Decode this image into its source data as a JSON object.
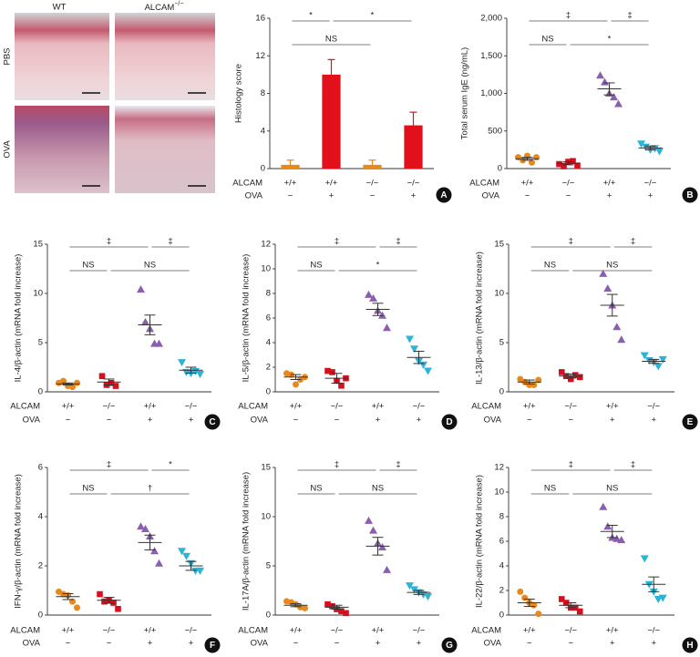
{
  "histology": {
    "columns": [
      {
        "text": "WT"
      },
      {
        "text": "ALCAM",
        "sup": "−/−"
      }
    ],
    "rows": [
      "PBS",
      "OVA"
    ]
  },
  "chart_data": [
    {
      "type": "bar",
      "panel": "A",
      "ylabel": "Histology score",
      "ylim": [
        0,
        16
      ],
      "yticks": [
        0,
        4,
        8,
        12,
        16
      ],
      "rows": [
        {
          "label": "ALCAM",
          "cells": [
            "+/+",
            "+/+",
            "−/−",
            "−/−"
          ]
        },
        {
          "label": "OVA",
          "cells": [
            "−",
            "+",
            "−",
            "+"
          ]
        }
      ],
      "values": [
        0.4,
        10,
        0.4,
        4.6
      ],
      "errors": [
        0.5,
        1.6,
        0.5,
        1.4
      ],
      "colors": [
        "#e8891a",
        "#e2101a",
        "#e8891a",
        "#e2101a"
      ],
      "brackets": [
        [
          {
            "pair": [
              0,
              1
            ],
            "label": "*"
          },
          {
            "pair": [
              1,
              3
            ],
            "label": "*"
          }
        ],
        [
          {
            "pair": [
              0,
              2
            ],
            "label": "NS"
          }
        ]
      ]
    },
    {
      "type": "dot",
      "panel": "B",
      "ylabel": "Total serum IgE (ng/mL)",
      "ylim": [
        0,
        2000
      ],
      "yticks": [
        0,
        500,
        {
          "value": 1000,
          "label": "1,000"
        },
        {
          "value": 1500,
          "label": "1,500"
        },
        {
          "value": 2000,
          "label": "2,000"
        }
      ],
      "rows": [
        {
          "label": "ALCAM",
          "cells": [
            "+/+",
            "−/−",
            "+/+",
            "−/−"
          ]
        },
        {
          "label": "OVA",
          "cells": [
            "−",
            "−",
            "+",
            "+"
          ]
        }
      ],
      "groups": [
        {
          "color": "#e8891a",
          "marker": "circle",
          "values": [
            150,
            110,
            170,
            80,
            150
          ],
          "mean": 130,
          "sem": 20
        },
        {
          "color": "#d4101f",
          "marker": "square",
          "values": [
            60,
            30,
            90,
            100,
            40
          ],
          "mean": 70,
          "sem": 20
        },
        {
          "color": "#8a5fb0",
          "marker": "triangle",
          "values": [
            1240,
            1150,
            1000,
            950,
            860
          ],
          "mean": 1060,
          "sem": 80
        },
        {
          "color": "#2bb3d8",
          "marker": "triangle-down",
          "values": [
            330,
            290,
            250,
            270,
            230
          ],
          "mean": 275,
          "sem": 25
        }
      ],
      "brackets": [
        [
          {
            "pair": [
              0,
              2
            ],
            "label": "‡"
          },
          {
            "pair": [
              2,
              3
            ],
            "label": "‡"
          }
        ],
        [
          {
            "pair": [
              0,
              1
            ],
            "label": "NS"
          },
          {
            "pair": [
              1,
              3
            ],
            "label": "*"
          }
        ]
      ]
    },
    {
      "type": "dot",
      "panel": "C",
      "ylabel": "IL-4/β-actin (mRNA fold increase)",
      "ylim": [
        0,
        15
      ],
      "yticks": [
        0,
        5,
        10,
        15
      ],
      "rows": [
        {
          "label": "ALCAM",
          "cells": [
            "+/+",
            "−/−",
            "+/+",
            "−/−"
          ]
        },
        {
          "label": "OVA",
          "cells": [
            "−",
            "−",
            "+",
            "+"
          ]
        }
      ],
      "groups": [
        {
          "color": "#e8891a",
          "marker": "circle",
          "values": [
            0.9,
            1.1,
            0.6,
            0.5,
            0.9
          ],
          "mean": 0.8,
          "sem": 0.1
        },
        {
          "color": "#d4101f",
          "marker": "square",
          "values": [
            1.6,
            0.7,
            0.9,
            0.6
          ],
          "mean": 1.0,
          "sem": 0.3
        },
        {
          "color": "#8a5fb0",
          "marker": "triangle",
          "values": [
            10.4,
            7.1,
            6.4,
            4.9,
            4.9
          ],
          "mean": 6.8,
          "sem": 1.0
        },
        {
          "color": "#2bb3d8",
          "marker": "triangle-down",
          "values": [
            3.0,
            2.0,
            1.9,
            2.1,
            1.8
          ],
          "mean": 2.2,
          "sem": 0.3
        }
      ],
      "brackets": [
        [
          {
            "pair": [
              0,
              2
            ],
            "label": "‡"
          },
          {
            "pair": [
              2,
              3
            ],
            "label": "‡"
          }
        ],
        [
          {
            "pair": [
              0,
              1
            ],
            "label": "NS"
          },
          {
            "pair": [
              1,
              3
            ],
            "label": "NS"
          }
        ]
      ]
    },
    {
      "type": "dot",
      "panel": "D",
      "ylabel": "IL-5/β-actin (mRNA fold increase)",
      "ylim": [
        0,
        12
      ],
      "yticks": [
        0,
        2,
        4,
        6,
        8,
        10,
        12
      ],
      "rows": [
        {
          "label": "ALCAM",
          "cells": [
            "+/+",
            "−/−",
            "+/+",
            "−/−"
          ]
        },
        {
          "label": "OVA",
          "cells": [
            "−",
            "−",
            "+",
            "+"
          ]
        }
      ],
      "groups": [
        {
          "color": "#e8891a",
          "marker": "circle",
          "values": [
            1.5,
            1.4,
            0.6,
            1.0,
            1.2
          ],
          "mean": 1.2,
          "sem": 0.2
        },
        {
          "color": "#d4101f",
          "marker": "square",
          "values": [
            1.7,
            1.6,
            0.9,
            0.5,
            1.1
          ],
          "mean": 1.1,
          "sem": 0.4
        },
        {
          "color": "#8a5fb0",
          "marker": "triangle",
          "values": [
            7.9,
            7.6,
            6.6,
            6.2,
            5.2
          ],
          "mean": 6.7,
          "sem": 0.5
        },
        {
          "color": "#2bb3d8",
          "marker": "triangle-down",
          "values": [
            4.3,
            3.5,
            2.5,
            2.2,
            1.7
          ],
          "mean": 2.8,
          "sem": 0.5
        }
      ],
      "brackets": [
        [
          {
            "pair": [
              0,
              2
            ],
            "label": "‡"
          },
          {
            "pair": [
              2,
              3
            ],
            "label": "‡"
          }
        ],
        [
          {
            "pair": [
              0,
              1
            ],
            "label": "NS"
          },
          {
            "pair": [
              1,
              3
            ],
            "label": "*"
          }
        ]
      ]
    },
    {
      "type": "dot",
      "panel": "E",
      "ylabel": "IL-13/β-actin (mRNA fold increase)",
      "ylim": [
        0,
        15
      ],
      "yticks": [
        0,
        5,
        10,
        15
      ],
      "rows": [
        {
          "label": "ALCAM",
          "cells": [
            "+/+",
            "−/−",
            "+/+",
            "−/−"
          ]
        },
        {
          "label": "OVA",
          "cells": [
            "−",
            "−",
            "+",
            "+"
          ]
        }
      ],
      "groups": [
        {
          "color": "#e8891a",
          "marker": "circle",
          "values": [
            1.3,
            1.0,
            0.7,
            0.7,
            1.2
          ],
          "mean": 1.0,
          "sem": 0.2
        },
        {
          "color": "#d4101f",
          "marker": "square",
          "values": [
            2.0,
            1.6,
            1.3,
            1.7,
            1.5
          ],
          "mean": 1.6,
          "sem": 0.2
        },
        {
          "color": "#8a5fb0",
          "marker": "triangle",
          "values": [
            12.0,
            10.5,
            8.8,
            6.6,
            5.3
          ],
          "mean": 8.8,
          "sem": 1.1
        },
        {
          "color": "#2bb3d8",
          "marker": "triangle-down",
          "values": [
            3.7,
            3.2,
            3.0,
            2.6,
            3.3
          ],
          "mean": 3.1,
          "sem": 0.2
        }
      ],
      "brackets": [
        [
          {
            "pair": [
              0,
              2
            ],
            "label": "‡"
          },
          {
            "pair": [
              2,
              3
            ],
            "label": "‡"
          }
        ],
        [
          {
            "pair": [
              0,
              1
            ],
            "label": "NS"
          },
          {
            "pair": [
              1,
              3
            ],
            "label": "NS"
          }
        ]
      ]
    },
    {
      "type": "dot",
      "panel": "F",
      "ylabel": "IFN-γ/β-actin (mRNA fold increase)",
      "ylim": [
        0,
        6
      ],
      "yticks": [
        0,
        2,
        4,
        6
      ],
      "rows": [
        {
          "label": "ALCAM",
          "cells": [
            "+/+",
            "−/−",
            "+/+",
            "−/−"
          ]
        },
        {
          "label": "OVA",
          "cells": [
            "−",
            "−",
            "+",
            "+"
          ]
        }
      ],
      "groups": [
        {
          "color": "#e8891a",
          "marker": "circle",
          "values": [
            0.95,
            0.85,
            0.8,
            0.55,
            0.3
          ],
          "mean": 0.75,
          "sem": 0.12
        },
        {
          "color": "#d4101f",
          "marker": "square",
          "values": [
            0.85,
            0.55,
            0.6,
            0.5,
            0.25
          ],
          "mean": 0.6,
          "sem": 0.12
        },
        {
          "color": "#8a5fb0",
          "marker": "triangle",
          "values": [
            3.6,
            3.5,
            3.2,
            2.6,
            2.1
          ],
          "mean": 2.95,
          "sem": 0.3
        },
        {
          "color": "#2bb3d8",
          "marker": "triangle-down",
          "values": [
            2.6,
            2.4,
            2.1,
            1.8,
            1.8
          ],
          "mean": 2.0,
          "sem": 0.18
        }
      ],
      "brackets": [
        [
          {
            "pair": [
              0,
              2
            ],
            "label": "‡"
          },
          {
            "pair": [
              2,
              3
            ],
            "label": "*"
          }
        ],
        [
          {
            "pair": [
              0,
              1
            ],
            "label": "NS"
          },
          {
            "pair": [
              1,
              3
            ],
            "label": "†"
          }
        ]
      ]
    },
    {
      "type": "dot",
      "panel": "G",
      "ylabel": "IL-17A/β-actin (mRNA fold increase)",
      "ylim": [
        0,
        15
      ],
      "yticks": [
        0,
        5,
        10,
        15
      ],
      "rows": [
        {
          "label": "ALCAM",
          "cells": [
            "+/+",
            "−/−",
            "+/+",
            "−/−"
          ]
        },
        {
          "label": "OVA",
          "cells": [
            "−",
            "−",
            "+",
            "+"
          ]
        }
      ],
      "groups": [
        {
          "color": "#e8891a",
          "marker": "circle",
          "values": [
            1.4,
            1.3,
            1.1,
            0.8,
            0.7
          ],
          "mean": 1.0,
          "sem": 0.15
        },
        {
          "color": "#d4101f",
          "marker": "square",
          "values": [
            1.1,
            0.9,
            0.6,
            0.4,
            0.2
          ],
          "mean": 0.8,
          "sem": 0.2
        },
        {
          "color": "#8a5fb0",
          "marker": "triangle",
          "values": [
            9.6,
            8.6,
            7.3,
            6.9,
            4.6
          ],
          "mean": 7.0,
          "sem": 0.9
        },
        {
          "color": "#2bb3d8",
          "marker": "triangle-down",
          "values": [
            3.0,
            2.6,
            2.3,
            2.1,
            1.9
          ],
          "mean": 2.3,
          "sem": 0.2
        }
      ],
      "brackets": [
        [
          {
            "pair": [
              0,
              2
            ],
            "label": "‡"
          },
          {
            "pair": [
              2,
              3
            ],
            "label": "‡"
          }
        ],
        [
          {
            "pair": [
              0,
              1
            ],
            "label": "NS"
          },
          {
            "pair": [
              1,
              3
            ],
            "label": "NS"
          }
        ]
      ]
    },
    {
      "type": "dot",
      "panel": "H",
      "ylabel": "IL-22/β-actin (mRNA fold increase)",
      "ylim": [
        0,
        12
      ],
      "yticks": [
        0,
        2,
        4,
        6,
        8,
        10,
        12
      ],
      "rows": [
        {
          "label": "ALCAM",
          "cells": [
            "+/+",
            "−/−",
            "+/+",
            "−/−"
          ]
        },
        {
          "label": "OVA",
          "cells": [
            "−",
            "−",
            "+",
            "+"
          ]
        }
      ],
      "groups": [
        {
          "color": "#e8891a",
          "marker": "circle",
          "values": [
            1.9,
            1.4,
            1.0,
            0.8,
            0.1
          ],
          "mean": 1.0,
          "sem": 0.3
        },
        {
          "color": "#d4101f",
          "marker": "square",
          "values": [
            1.3,
            1.0,
            0.6,
            0.6,
            0.3
          ],
          "mean": 0.8,
          "sem": 0.2
        },
        {
          "color": "#8a5fb0",
          "marker": "triangle",
          "values": [
            8.8,
            7.2,
            6.3,
            6.2,
            6.1
          ],
          "mean": 6.8,
          "sem": 0.5
        },
        {
          "color": "#2bb3d8",
          "marker": "triangle-down",
          "values": [
            4.6,
            2.5,
            1.9,
            1.3,
            1.4
          ],
          "mean": 2.5,
          "sem": 0.6
        }
      ],
      "brackets": [
        [
          {
            "pair": [
              0,
              2
            ],
            "label": "‡"
          },
          {
            "pair": [
              2,
              3
            ],
            "label": "‡"
          }
        ],
        [
          {
            "pair": [
              0,
              1
            ],
            "label": "NS"
          },
          {
            "pair": [
              1,
              3
            ],
            "label": "NS"
          }
        ]
      ]
    }
  ]
}
